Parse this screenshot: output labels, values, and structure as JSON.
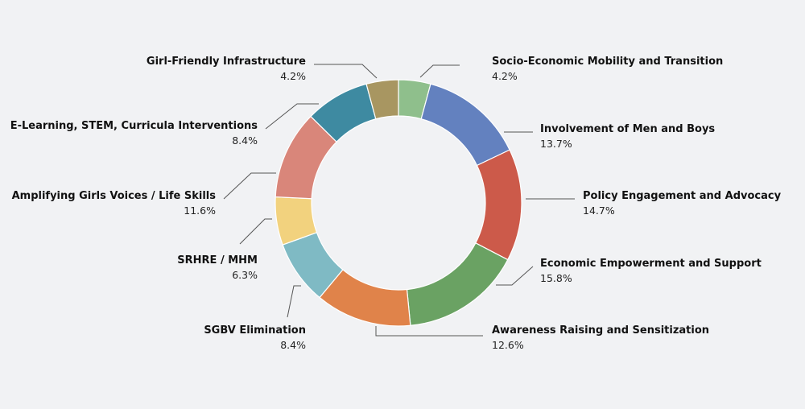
{
  "chart_data": {
    "type": "pie",
    "variant": "donut",
    "title": "",
    "slices": [
      {
        "label": "Socio-Economic Mobility and Transition",
        "value": 4.2,
        "display": "4.2%",
        "color": "#8fbf8c",
        "side": "right"
      },
      {
        "label": "Involvement of Men and Boys",
        "value": 13.7,
        "display": "13.7%",
        "color": "#6381bf",
        "side": "right"
      },
      {
        "label": "Policy Engagement and Advocacy",
        "value": 14.7,
        "display": "14.7%",
        "color": "#cc5a4a",
        "side": "right"
      },
      {
        "label": "Economic Empowerment and Support",
        "value": 15.8,
        "display": "15.8%",
        "color": "#6aa263",
        "side": "right"
      },
      {
        "label": "Awareness Raising and Sensitization",
        "value": 12.6,
        "display": "12.6%",
        "color": "#e0834a",
        "side": "right"
      },
      {
        "label": "SGBV Elimination",
        "value": 8.4,
        "display": "8.4%",
        "color": "#7fbac4",
        "side": "left"
      },
      {
        "label": "SRHRE / MHM",
        "value": 6.3,
        "display": "6.3%",
        "color": "#f2d27e",
        "side": "left"
      },
      {
        "label": "Amplifying Girls Voices / Life Skills",
        "value": 11.6,
        "display": "11.6%",
        "color": "#d9867a",
        "side": "left"
      },
      {
        "label": "E-Learning, STEM, Curricula Interventions",
        "value": 8.4,
        "display": "8.4%",
        "color": "#3e8aa1",
        "side": "left"
      },
      {
        "label": "Girl-Friendly Infrastructure",
        "value": 4.2,
        "display": "4.2%",
        "color": "#a89661",
        "side": "left"
      }
    ]
  }
}
